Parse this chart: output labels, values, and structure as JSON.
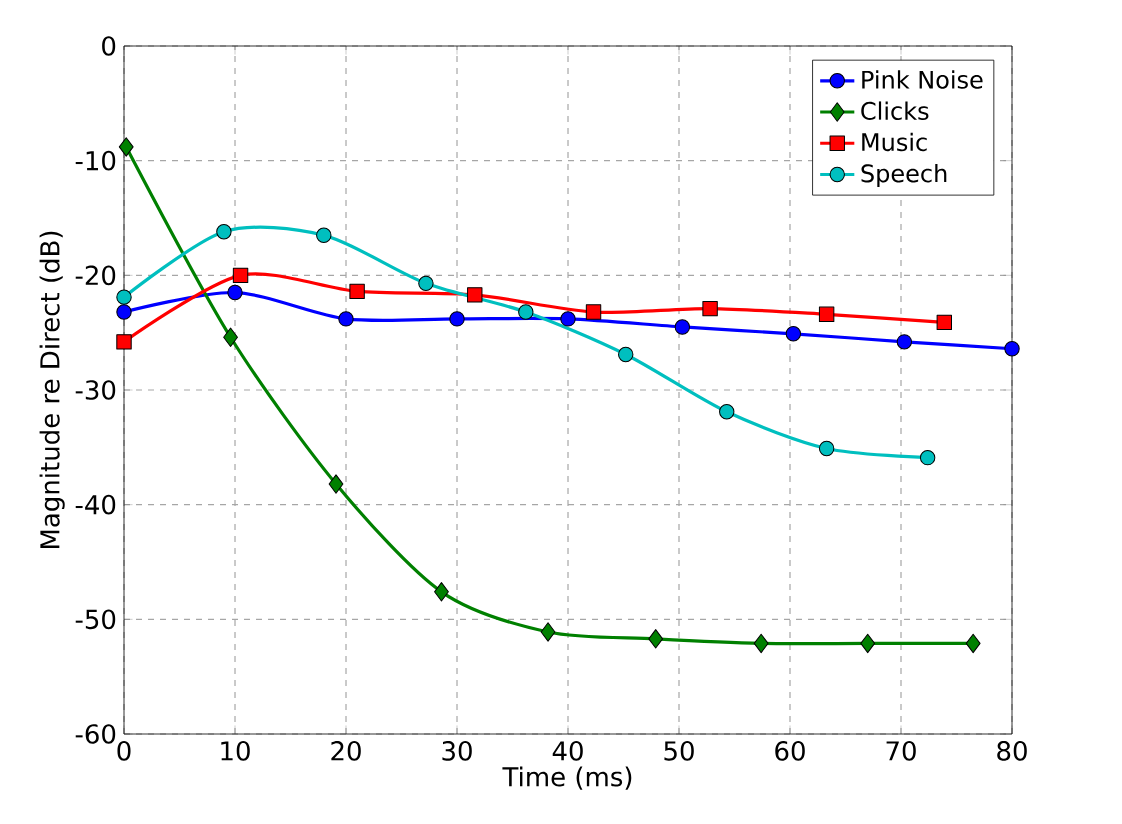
{
  "chart_data": {
    "type": "line",
    "xlabel": "Time (ms)",
    "ylabel": "Magnitude re Direct (dB)",
    "xlim": [
      0,
      80
    ],
    "ylim": [
      -60,
      0
    ],
    "xticks": [
      0,
      10,
      20,
      30,
      40,
      50,
      60,
      70,
      80
    ],
    "yticks": [
      -60,
      -50,
      -40,
      -30,
      -20,
      -10,
      0
    ],
    "grid": true,
    "legend": "top right",
    "line_style": "solid",
    "series": [
      {
        "name": "Pink Noise",
        "color": "#0000ff",
        "marker": "circle",
        "x": [
          0,
          10,
          20,
          30,
          40,
          50.3,
          60.3,
          70.3,
          80
        ],
        "values": [
          -23.2,
          -21.5,
          -23.8,
          -23.8,
          -23.8,
          -24.5,
          -25.1,
          -25.8,
          -26.4
        ]
      },
      {
        "name": "Clicks",
        "color": "#008000",
        "marker": "diamond",
        "x": [
          0.2,
          9.6,
          19.1,
          28.6,
          38.2,
          47.9,
          57.4,
          67,
          76.5
        ],
        "values": [
          -8.8,
          -25.4,
          -38.2,
          -47.6,
          -51.1,
          -51.7,
          -52.1,
          -52.1,
          -52.1
        ]
      },
      {
        "name": "Music",
        "color": "#ff0000",
        "marker": "square",
        "x": [
          0,
          10.5,
          21,
          31.6,
          42.3,
          52.8,
          63.3,
          73.9
        ],
        "values": [
          -25.8,
          -20,
          -21.4,
          -21.7,
          -23.2,
          -22.9,
          -23.4,
          -24.1
        ]
      },
      {
        "name": "Speech",
        "color": "#00bfbf",
        "marker": "circle",
        "x": [
          0,
          9,
          18,
          27.2,
          36.2,
          45.2,
          54.3,
          63.3,
          72.4
        ],
        "values": [
          -21.9,
          -16.2,
          -16.5,
          -20.7,
          -23.2,
          -26.9,
          -31.9,
          -35.1,
          -35.9
        ]
      }
    ]
  }
}
